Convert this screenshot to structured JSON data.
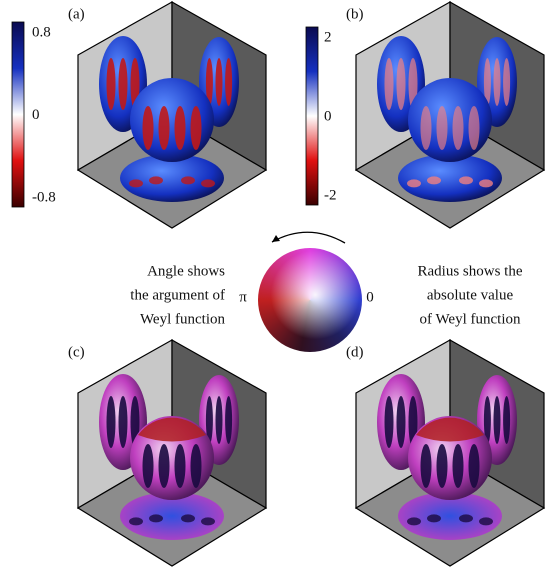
{
  "panels": [
    {
      "label": "(a)"
    },
    {
      "label": "(b)"
    },
    {
      "label": "(c)"
    },
    {
      "label": "(d)"
    }
  ],
  "colorbars": [
    {
      "ticks": [
        "0.8",
        "0",
        "-0.8"
      ]
    },
    {
      "ticks": [
        "2",
        "0",
        "-2"
      ]
    }
  ],
  "legend": {
    "left_text": [
      "Angle shows",
      "the argument of",
      "Weyl function"
    ],
    "right_text": [
      "Radius shows the",
      "absolute value",
      "of Weyl function"
    ],
    "angle_pi": "π",
    "angle_zero": "0"
  }
}
